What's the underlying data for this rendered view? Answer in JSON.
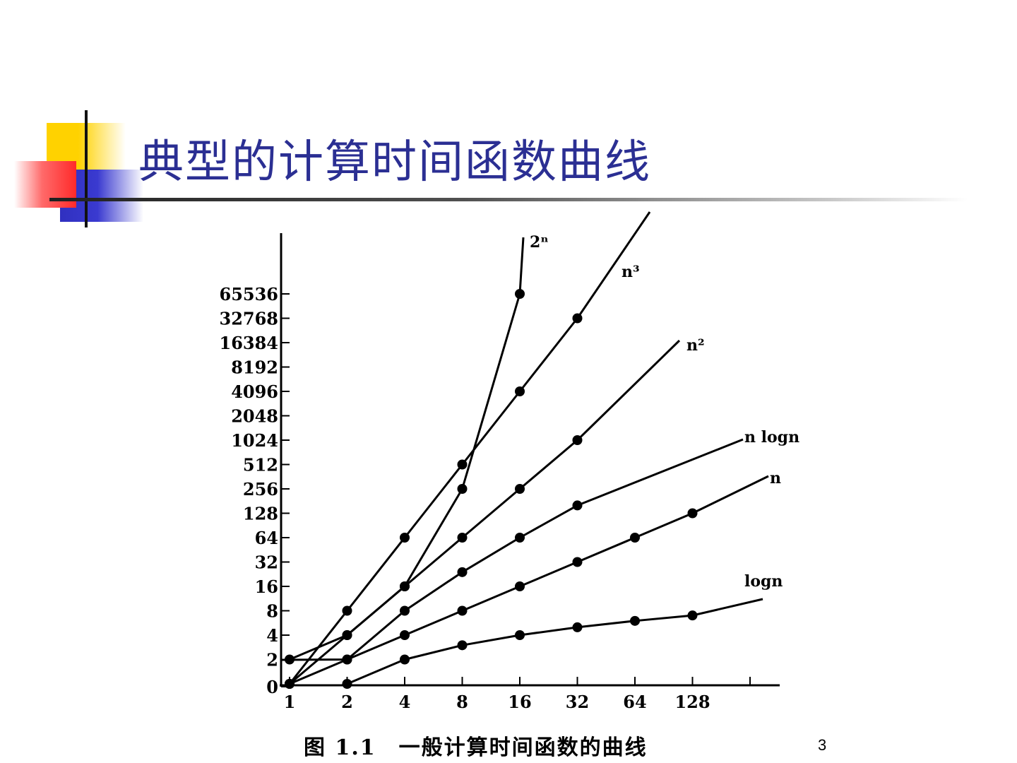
{
  "slide": {
    "title": "典型的计算时间函数曲线",
    "page_number": "3"
  },
  "chart_data": {
    "type": "line",
    "title": "图 1.1　一般计算时间函数的曲线",
    "xlabel": "",
    "ylabel": "",
    "x_scale": "log2",
    "y_scale": "log2",
    "x_ticks": [
      "1",
      "2",
      "4",
      "8",
      "16",
      "32",
      "64",
      "128"
    ],
    "y_ticks": [
      "0",
      "2",
      "4",
      "8",
      "16",
      "32",
      "64",
      "128",
      "256",
      "512",
      "1024",
      "2048",
      "4096",
      "8192",
      "16384",
      "32768",
      "65536"
    ],
    "series": [
      {
        "name": "2ⁿ",
        "x": [
          1,
          2,
          4,
          8,
          16
        ],
        "y": [
          2,
          4,
          16,
          256,
          65536
        ]
      },
      {
        "name": "n³",
        "x": [
          1,
          2,
          4,
          8,
          16,
          32
        ],
        "y": [
          1,
          8,
          64,
          512,
          4096,
          32768
        ]
      },
      {
        "name": "n²",
        "x": [
          1,
          2,
          4,
          8,
          16,
          32
        ],
        "y": [
          1,
          4,
          16,
          64,
          256,
          1024
        ]
      },
      {
        "name": "n logn",
        "x": [
          2,
          4,
          8,
          16,
          32
        ],
        "y": [
          2,
          8,
          24,
          64,
          160
        ]
      },
      {
        "name": "n",
        "x": [
          1,
          2,
          4,
          8,
          16,
          32,
          64,
          128
        ],
        "y": [
          1,
          2,
          4,
          8,
          16,
          32,
          64,
          128
        ]
      },
      {
        "name": "logn",
        "x": [
          2,
          4,
          8,
          16,
          32,
          64,
          128
        ],
        "y": [
          1,
          2,
          3,
          4,
          5,
          6,
          7
        ]
      }
    ]
  }
}
